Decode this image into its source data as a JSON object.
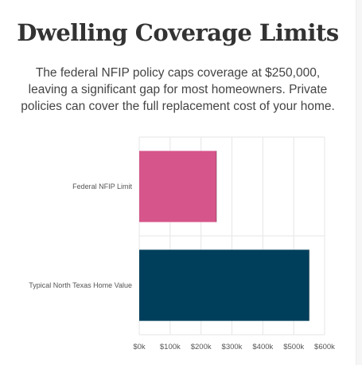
{
  "header": {
    "title": "Dwelling Coverage Limits",
    "description": "The federal NFIP policy caps coverage at $250,000, leaving a significant gap for most homeowners. Private policies can cover the full replacement cost of your home."
  },
  "chart_data": {
    "type": "bar",
    "orientation": "horizontal",
    "categories": [
      "Federal NFIP Limit",
      "Typical North Texas Home Value"
    ],
    "values": [
      250000,
      550000
    ],
    "colors": [
      "#d6558a",
      "#003f5c"
    ],
    "xlim": [
      0,
      600000
    ],
    "xticks": [
      0,
      100000,
      200000,
      300000,
      400000,
      500000,
      600000
    ],
    "xtick_labels": [
      "$0k",
      "$100k",
      "$200k",
      "$300k",
      "$400k",
      "$500k",
      "$600k"
    ],
    "grid": true,
    "legend": "none"
  }
}
